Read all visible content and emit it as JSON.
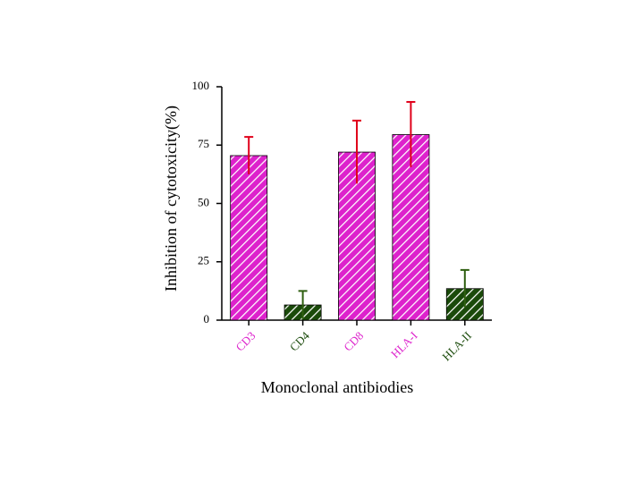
{
  "chart_data": {
    "type": "bar",
    "categories": [
      "CD3",
      "CD4",
      "CD8",
      "HLA-I",
      "HLA-II"
    ],
    "values": [
      70.5,
      6.5,
      72,
      79.5,
      13.5
    ],
    "errors": [
      8,
      6,
      13.5,
      14,
      8
    ],
    "colors": [
      "#dd22cc",
      "#1a4a0a",
      "#dd22cc",
      "#dd22cc",
      "#1a4a0a"
    ],
    "error_colors": [
      "#e0001a",
      "#2f5f10",
      "#e0001a",
      "#e0001a",
      "#2f5f10"
    ],
    "x_label": "Monoclonal antibiodies",
    "y_label": "Inhibition of cytotoxicity(%)",
    "ylim": [
      0,
      100
    ],
    "yticks": [
      0,
      25,
      50,
      75,
      100
    ],
    "hatch": true
  }
}
